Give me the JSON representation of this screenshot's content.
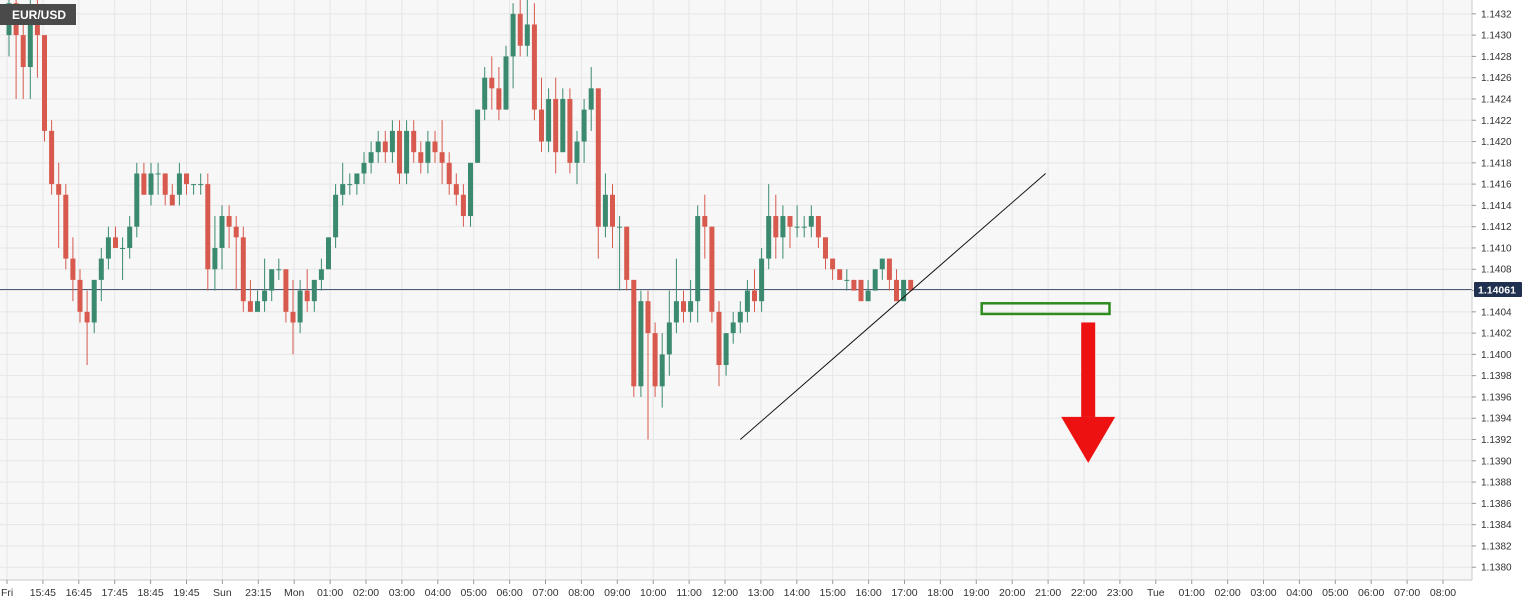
{
  "symbol": "EUR/USD",
  "last_price_label": "1.14061",
  "colors": {
    "background": "#f7f7f7",
    "grid": "#e6e6e6",
    "bull": "#3b8a70",
    "bear": "#d85a4e",
    "price_line": "#4a5a7a",
    "price_label_bg": "#1f3050",
    "trend_line": "#111111",
    "support_box": "#2e8b1e",
    "arrow": "#ee1111",
    "title_bg": "#4a4a4a"
  },
  "chart_data": {
    "type": "candlestick",
    "y_ticks": [
      "1.1432",
      "1.1430",
      "1.1428",
      "1.1426",
      "1.1424",
      "1.1422",
      "1.1420",
      "1.1418",
      "1.1416",
      "1.1414",
      "1.1412",
      "1.1410",
      "1.1408",
      "1.1406",
      "1.1404",
      "1.1402",
      "1.1400",
      "1.1398",
      "1.1396",
      "1.1394",
      "1.1392",
      "1.1390",
      "1.1388",
      "1.1386",
      "1.1384",
      "1.1382",
      "1.1380"
    ],
    "ylim": [
      1.13788,
      1.14333
    ],
    "x_ticks": [
      "Fri",
      "15:45",
      "16:45",
      "17:45",
      "18:45",
      "19:45",
      "Sun",
      "23:15",
      "Mon",
      "01:00",
      "02:00",
      "03:00",
      "04:00",
      "05:00",
      "06:00",
      "07:00",
      "08:00",
      "09:00",
      "10:00",
      "11:00",
      "12:00",
      "13:00",
      "14:00",
      "15:00",
      "16:00",
      "17:00",
      "18:00",
      "19:00",
      "20:00",
      "21:00",
      "22:00",
      "23:00",
      "Tue",
      "01:00",
      "02:00",
      "03:00",
      "04:00",
      "05:00",
      "06:00",
      "07:00",
      "08:00"
    ],
    "last_price": 1.14061,
    "candles": [
      {
        "o": 1.143,
        "h": 1.1434,
        "l": 1.1428,
        "c": 1.1433
      },
      {
        "o": 1.1433,
        "h": 1.1434,
        "l": 1.1424,
        "c": 1.143
      },
      {
        "o": 1.143,
        "h": 1.1431,
        "l": 1.1424,
        "c": 1.1427
      },
      {
        "o": 1.1427,
        "h": 1.1434,
        "l": 1.1424,
        "c": 1.1432
      },
      {
        "o": 1.1432,
        "h": 1.1434,
        "l": 1.1426,
        "c": 1.143
      },
      {
        "o": 1.143,
        "h": 1.143,
        "l": 1.142,
        "c": 1.1421
      },
      {
        "o": 1.1421,
        "h": 1.1422,
        "l": 1.1415,
        "c": 1.1416
      },
      {
        "o": 1.1416,
        "h": 1.1418,
        "l": 1.141,
        "c": 1.1415
      },
      {
        "o": 1.1415,
        "h": 1.1416,
        "l": 1.1408,
        "c": 1.1409
      },
      {
        "o": 1.1409,
        "h": 1.1411,
        "l": 1.1405,
        "c": 1.1407
      },
      {
        "o": 1.1407,
        "h": 1.1408,
        "l": 1.1403,
        "c": 1.1404
      },
      {
        "o": 1.1404,
        "h": 1.1406,
        "l": 1.1399,
        "c": 1.1403
      },
      {
        "o": 1.1403,
        "h": 1.1407,
        "l": 1.1402,
        "c": 1.1407
      },
      {
        "o": 1.1407,
        "h": 1.141,
        "l": 1.1405,
        "c": 1.1409
      },
      {
        "o": 1.1409,
        "h": 1.1412,
        "l": 1.1408,
        "c": 1.1411
      },
      {
        "o": 1.1411,
        "h": 1.1412,
        "l": 1.141,
        "c": 1.141
      },
      {
        "o": 1.141,
        "h": 1.1411,
        "l": 1.1407,
        "c": 1.141
      },
      {
        "o": 1.141,
        "h": 1.1413,
        "l": 1.1409,
        "c": 1.1412
      },
      {
        "o": 1.1412,
        "h": 1.1418,
        "l": 1.1411,
        "c": 1.1417
      },
      {
        "o": 1.1417,
        "h": 1.1418,
        "l": 1.1415,
        "c": 1.1415
      },
      {
        "o": 1.1415,
        "h": 1.1418,
        "l": 1.1414,
        "c": 1.1417
      },
      {
        "o": 1.1417,
        "h": 1.1418,
        "l": 1.1415,
        "c": 1.1417
      },
      {
        "o": 1.1417,
        "h": 1.1417,
        "l": 1.1414,
        "c": 1.1415
      },
      {
        "o": 1.1415,
        "h": 1.1416,
        "l": 1.1414,
        "c": 1.1414
      },
      {
        "o": 1.1415,
        "h": 1.1418,
        "l": 1.1414,
        "c": 1.1417
      },
      {
        "o": 1.1417,
        "h": 1.1417,
        "l": 1.1415,
        "c": 1.1416
      },
      {
        "o": 1.1416,
        "h": 1.1416,
        "l": 1.1415,
        "c": 1.1416
      },
      {
        "o": 1.1416,
        "h": 1.1417,
        "l": 1.1415,
        "c": 1.1416
      },
      {
        "o": 1.1416,
        "h": 1.1417,
        "l": 1.1406,
        "c": 1.1408
      },
      {
        "o": 1.1408,
        "h": 1.1413,
        "l": 1.1406,
        "c": 1.141
      },
      {
        "o": 1.141,
        "h": 1.1414,
        "l": 1.1408,
        "c": 1.1413
      },
      {
        "o": 1.1413,
        "h": 1.1414,
        "l": 1.141,
        "c": 1.1412
      },
      {
        "o": 1.1412,
        "h": 1.1413,
        "l": 1.1406,
        "c": 1.1411
      },
      {
        "o": 1.1411,
        "h": 1.1412,
        "l": 1.1404,
        "c": 1.1405
      },
      {
        "o": 1.1405,
        "h": 1.1407,
        "l": 1.1404,
        "c": 1.1404
      },
      {
        "o": 1.1404,
        "h": 1.1406,
        "l": 1.1404,
        "c": 1.1405
      },
      {
        "o": 1.1405,
        "h": 1.1409,
        "l": 1.1404,
        "c": 1.1406
      },
      {
        "o": 1.1406,
        "h": 1.1408,
        "l": 1.1405,
        "c": 1.1408
      },
      {
        "o": 1.1408,
        "h": 1.1409,
        "l": 1.1407,
        "c": 1.1408
      },
      {
        "o": 1.1408,
        "h": 1.1408,
        "l": 1.1403,
        "c": 1.1404
      },
      {
        "o": 1.1404,
        "h": 1.1407,
        "l": 1.14,
        "c": 1.1403
      },
      {
        "o": 1.1403,
        "h": 1.1407,
        "l": 1.1402,
        "c": 1.1406
      },
      {
        "o": 1.1406,
        "h": 1.1408,
        "l": 1.1404,
        "c": 1.1405
      },
      {
        "o": 1.1405,
        "h": 1.1407,
        "l": 1.1404,
        "c": 1.1407
      },
      {
        "o": 1.1407,
        "h": 1.1409,
        "l": 1.1406,
        "c": 1.1408
      },
      {
        "o": 1.1408,
        "h": 1.1411,
        "l": 1.1408,
        "c": 1.1411
      },
      {
        "o": 1.1411,
        "h": 1.1416,
        "l": 1.141,
        "c": 1.1415
      },
      {
        "o": 1.1415,
        "h": 1.1418,
        "l": 1.1414,
        "c": 1.1416
      },
      {
        "o": 1.1416,
        "h": 1.1417,
        "l": 1.1415,
        "c": 1.1416
      },
      {
        "o": 1.1416,
        "h": 1.1417,
        "l": 1.1415,
        "c": 1.1417
      },
      {
        "o": 1.1417,
        "h": 1.1419,
        "l": 1.1416,
        "c": 1.1418
      },
      {
        "o": 1.1418,
        "h": 1.142,
        "l": 1.1417,
        "c": 1.1419
      },
      {
        "o": 1.1419,
        "h": 1.1421,
        "l": 1.1418,
        "c": 1.142
      },
      {
        "o": 1.142,
        "h": 1.1421,
        "l": 1.1418,
        "c": 1.1419
      },
      {
        "o": 1.1419,
        "h": 1.1422,
        "l": 1.1418,
        "c": 1.1421
      },
      {
        "o": 1.1421,
        "h": 1.1422,
        "l": 1.1416,
        "c": 1.1417
      },
      {
        "o": 1.1417,
        "h": 1.1422,
        "l": 1.1416,
        "c": 1.1421
      },
      {
        "o": 1.1421,
        "h": 1.1422,
        "l": 1.1418,
        "c": 1.1419
      },
      {
        "o": 1.1419,
        "h": 1.142,
        "l": 1.1417,
        "c": 1.1418
      },
      {
        "o": 1.1418,
        "h": 1.1421,
        "l": 1.1417,
        "c": 1.142
      },
      {
        "o": 1.142,
        "h": 1.1421,
        "l": 1.1418,
        "c": 1.1419
      },
      {
        "o": 1.1419,
        "h": 1.1422,
        "l": 1.1416,
        "c": 1.1418
      },
      {
        "o": 1.1418,
        "h": 1.1419,
        "l": 1.1415,
        "c": 1.1416
      },
      {
        "o": 1.1416,
        "h": 1.1417,
        "l": 1.1414,
        "c": 1.1415
      },
      {
        "o": 1.1415,
        "h": 1.1416,
        "l": 1.1412,
        "c": 1.1413
      },
      {
        "o": 1.1413,
        "h": 1.1418,
        "l": 1.1412,
        "c": 1.1418
      },
      {
        "o": 1.1418,
        "h": 1.1423,
        "l": 1.1418,
        "c": 1.1423
      },
      {
        "o": 1.1423,
        "h": 1.1427,
        "l": 1.1422,
        "c": 1.1426
      },
      {
        "o": 1.1426,
        "h": 1.1428,
        "l": 1.1423,
        "c": 1.1425
      },
      {
        "o": 1.1425,
        "h": 1.1427,
        "l": 1.1422,
        "c": 1.1423
      },
      {
        "o": 1.1423,
        "h": 1.1429,
        "l": 1.1423,
        "c": 1.1428
      },
      {
        "o": 1.1428,
        "h": 1.1433,
        "l": 1.1425,
        "c": 1.1432
      },
      {
        "o": 1.1432,
        "h": 1.1435,
        "l": 1.1428,
        "c": 1.1429
      },
      {
        "o": 1.1429,
        "h": 1.1434,
        "l": 1.1428,
        "c": 1.1431
      },
      {
        "o": 1.1431,
        "h": 1.1433,
        "l": 1.1422,
        "c": 1.1423
      },
      {
        "o": 1.1423,
        "h": 1.1426,
        "l": 1.1419,
        "c": 1.142
      },
      {
        "o": 1.142,
        "h": 1.1425,
        "l": 1.1419,
        "c": 1.1424
      },
      {
        "o": 1.1424,
        "h": 1.1426,
        "l": 1.1417,
        "c": 1.1419
      },
      {
        "o": 1.1419,
        "h": 1.1425,
        "l": 1.1419,
        "c": 1.1424
      },
      {
        "o": 1.1424,
        "h": 1.1425,
        "l": 1.1417,
        "c": 1.1418
      },
      {
        "o": 1.1418,
        "h": 1.1421,
        "l": 1.1416,
        "c": 1.142
      },
      {
        "o": 1.142,
        "h": 1.1424,
        "l": 1.1418,
        "c": 1.1423
      },
      {
        "o": 1.1423,
        "h": 1.1427,
        "l": 1.1421,
        "c": 1.1425
      },
      {
        "o": 1.1425,
        "h": 1.1425,
        "l": 1.1409,
        "c": 1.1412
      },
      {
        "o": 1.1412,
        "h": 1.1417,
        "l": 1.1411,
        "c": 1.1415
      },
      {
        "o": 1.1415,
        "h": 1.1416,
        "l": 1.141,
        "c": 1.1412
      },
      {
        "o": 1.1412,
        "h": 1.1413,
        "l": 1.1406,
        "c": 1.1412
      },
      {
        "o": 1.1412,
        "h": 1.1412,
        "l": 1.1406,
        "c": 1.1407
      },
      {
        "o": 1.1407,
        "h": 1.1407,
        "l": 1.1396,
        "c": 1.1397
      },
      {
        "o": 1.1397,
        "h": 1.1406,
        "l": 1.1396,
        "c": 1.1405
      },
      {
        "o": 1.1405,
        "h": 1.1406,
        "l": 1.1392,
        "c": 1.1402
      },
      {
        "o": 1.1402,
        "h": 1.1403,
        "l": 1.1396,
        "c": 1.1397
      },
      {
        "o": 1.1397,
        "h": 1.1402,
        "l": 1.1395,
        "c": 1.14
      },
      {
        "o": 1.14,
        "h": 1.1406,
        "l": 1.1398,
        "c": 1.1403
      },
      {
        "o": 1.1403,
        "h": 1.1409,
        "l": 1.1402,
        "c": 1.1405
      },
      {
        "o": 1.1405,
        "h": 1.1406,
        "l": 1.1403,
        "c": 1.1404
      },
      {
        "o": 1.1404,
        "h": 1.1407,
        "l": 1.1403,
        "c": 1.1405
      },
      {
        "o": 1.1405,
        "h": 1.1414,
        "l": 1.1403,
        "c": 1.1413
      },
      {
        "o": 1.1413,
        "h": 1.1415,
        "l": 1.1409,
        "c": 1.1412
      },
      {
        "o": 1.1412,
        "h": 1.1412,
        "l": 1.1403,
        "c": 1.1404
      },
      {
        "o": 1.1404,
        "h": 1.1405,
        "l": 1.1397,
        "c": 1.1399
      },
      {
        "o": 1.1399,
        "h": 1.1402,
        "l": 1.1398,
        "c": 1.1402
      },
      {
        "o": 1.1402,
        "h": 1.1404,
        "l": 1.1401,
        "c": 1.1403
      },
      {
        "o": 1.1403,
        "h": 1.1405,
        "l": 1.1402,
        "c": 1.1404
      },
      {
        "o": 1.1404,
        "h": 1.1407,
        "l": 1.1403,
        "c": 1.1406
      },
      {
        "o": 1.1406,
        "h": 1.1408,
        "l": 1.1404,
        "c": 1.1405
      },
      {
        "o": 1.1405,
        "h": 1.141,
        "l": 1.1404,
        "c": 1.1409
      },
      {
        "o": 1.1409,
        "h": 1.1416,
        "l": 1.1408,
        "c": 1.1413
      },
      {
        "o": 1.1413,
        "h": 1.1415,
        "l": 1.1409,
        "c": 1.1411
      },
      {
        "o": 1.1411,
        "h": 1.1414,
        "l": 1.1409,
        "c": 1.1413
      },
      {
        "o": 1.1413,
        "h": 1.1413,
        "l": 1.141,
        "c": 1.1412
      },
      {
        "o": 1.1412,
        "h": 1.1414,
        "l": 1.1411,
        "c": 1.1412
      },
      {
        "o": 1.1412,
        "h": 1.1413,
        "l": 1.1411,
        "c": 1.1412
      },
      {
        "o": 1.1412,
        "h": 1.1414,
        "l": 1.1411,
        "c": 1.1413
      },
      {
        "o": 1.1413,
        "h": 1.1413,
        "l": 1.141,
        "c": 1.1411
      },
      {
        "o": 1.1411,
        "h": 1.1411,
        "l": 1.1408,
        "c": 1.1409
      },
      {
        "o": 1.1409,
        "h": 1.1409,
        "l": 1.1407,
        "c": 1.1408
      },
      {
        "o": 1.1408,
        "h": 1.1408,
        "l": 1.1407,
        "c": 1.1407
      },
      {
        "o": 1.1407,
        "h": 1.1408,
        "l": 1.1406,
        "c": 1.1407
      },
      {
        "o": 1.1407,
        "h": 1.1407,
        "l": 1.1406,
        "c": 1.1406
      },
      {
        "o": 1.1407,
        "h": 1.1407,
        "l": 1.1405,
        "c": 1.1405
      },
      {
        "o": 1.1405,
        "h": 1.1407,
        "l": 1.1405,
        "c": 1.1406
      },
      {
        "o": 1.1406,
        "h": 1.1408,
        "l": 1.1406,
        "c": 1.1408
      },
      {
        "o": 1.1408,
        "h": 1.1409,
        "l": 1.1407,
        "c": 1.1409
      },
      {
        "o": 1.1409,
        "h": 1.1409,
        "l": 1.1406,
        "c": 1.1407
      },
      {
        "o": 1.1407,
        "h": 1.1408,
        "l": 1.1405,
        "c": 1.1405
      },
      {
        "o": 1.1405,
        "h": 1.1407,
        "l": 1.1405,
        "c": 1.1407
      },
      {
        "o": 1.1407,
        "h": 1.1407,
        "l": 1.1406,
        "c": 1.1406
      }
    ],
    "annotations": {
      "trendline": {
        "from_candle": 103,
        "from_price": 1.1392,
        "to_candle": 146,
        "to_price": 1.1417
      },
      "support_box": {
        "from_candle": 137,
        "to_candle": 155,
        "top": 1.14048,
        "bottom": 1.14038
      },
      "arrow": {
        "candle": 152,
        "from_price": 1.1403,
        "to_price": 1.13898
      }
    }
  }
}
